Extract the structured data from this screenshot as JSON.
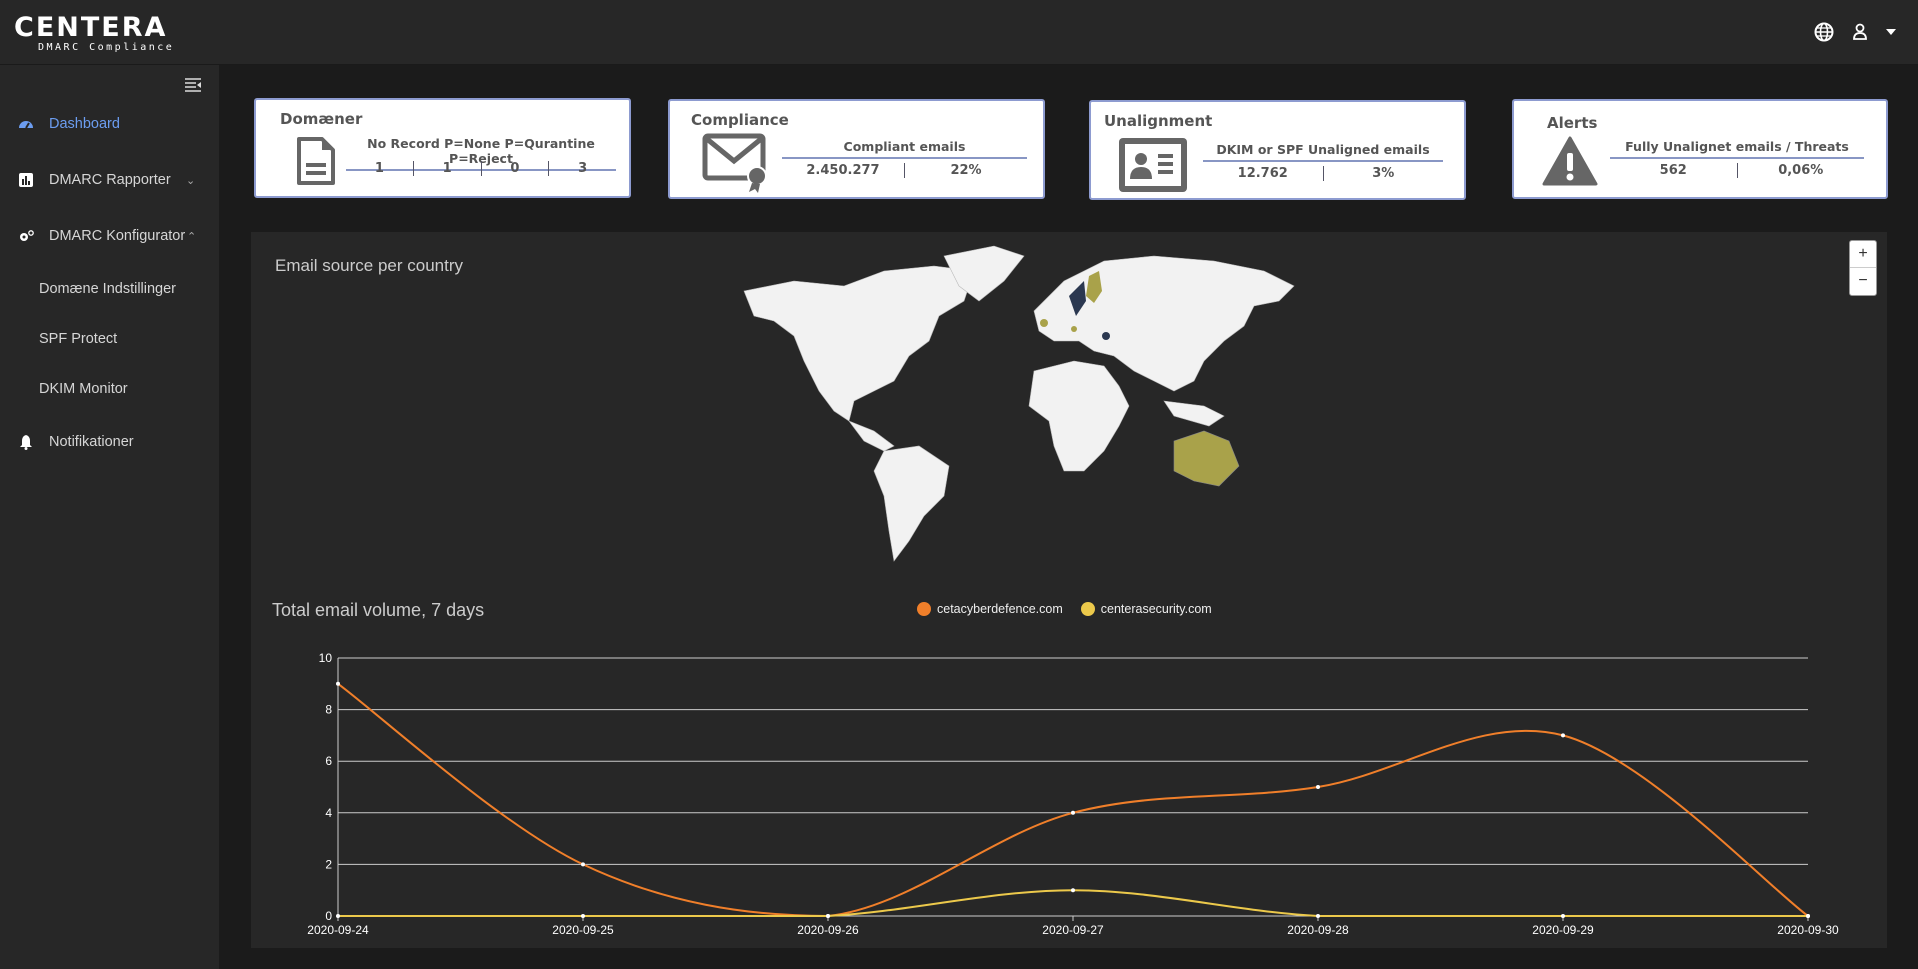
{
  "header": {
    "logo_name": "CENTERA",
    "logo_sub": "DMARC Compliance",
    "icons": [
      "globe-icon",
      "user-icon",
      "caret-down-icon"
    ]
  },
  "sidebar": {
    "items": [
      {
        "label": "Dashboard",
        "icon": "dashboard-icon",
        "active": true
      },
      {
        "label": "DMARC Rapporter",
        "icon": "bar-chart-icon",
        "chevron": "⌄"
      },
      {
        "label": "DMARC Konfigurator",
        "icon": "gears-icon",
        "chevron": "⌃"
      },
      {
        "label": "Domæne Indstillinger"
      },
      {
        "label": "SPF Protect"
      },
      {
        "label": "DKIM Monitor"
      },
      {
        "label": "Notifikationer",
        "icon": "bell-icon"
      }
    ]
  },
  "cards": {
    "domains": {
      "title": "Domæner",
      "header": "No Record P=None P=Qurantine P=Reject",
      "values": [
        "1",
        "1",
        "0",
        "3"
      ]
    },
    "compliance": {
      "title": "Compliance",
      "header": "Compliant emails",
      "values": [
        "2.450.277",
        "22%"
      ]
    },
    "unalignment": {
      "title": "Unalignment",
      "header": "DKIM or SPF Unaligned emails",
      "values": [
        "12.762",
        "3%"
      ]
    },
    "alerts": {
      "title": "Alerts",
      "header": "Fully Unalignet emails / Threats",
      "values": [
        "562",
        "0,06%"
      ]
    }
  },
  "map": {
    "title": "Email source per country",
    "zoom_in": "+",
    "zoom_out": "−",
    "land_color": "#f2f2f2",
    "highlight_color": "#a9a24a",
    "dark_color": "#2b3850"
  },
  "chart_data": {
    "type": "line",
    "title": "Total email volume, 7 days",
    "x": [
      "2020-09-24",
      "2020-09-25",
      "2020-09-26",
      "2020-09-27",
      "2020-09-28",
      "2020-09-29",
      "2020-09-30"
    ],
    "series": [
      {
        "name": "cetacyberdefence.com",
        "color": "#f07f2a",
        "values": [
          9,
          2,
          0,
          4,
          5,
          7,
          0
        ]
      },
      {
        "name": "centerasecurity.com",
        "color": "#ecc94b",
        "values": [
          0,
          0,
          0,
          1,
          0,
          0,
          0
        ]
      }
    ],
    "ylim": [
      0,
      10
    ],
    "yticks": [
      "0",
      "2",
      "4",
      "6",
      "8",
      "10"
    ],
    "grid": true,
    "legend": "top-center"
  }
}
